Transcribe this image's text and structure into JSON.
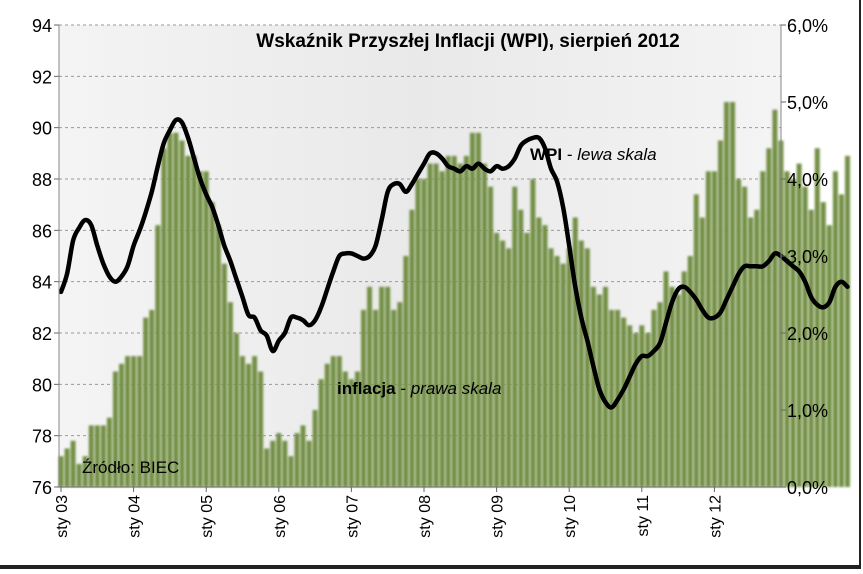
{
  "chart_data": {
    "type": "bar+line",
    "title": "Wskaźnik  Przyszłej Inflacji (WPI), sierpień 2012",
    "source": "Źródło: BIEC",
    "left_axis": {
      "min": 76,
      "max": 94,
      "ticks": [
        "76",
        "78",
        "80",
        "82",
        "84",
        "86",
        "88",
        "90",
        "92",
        "94"
      ]
    },
    "right_axis": {
      "min": 0.0,
      "max": 6.0,
      "ticks": [
        "0,0%",
        "1,0%",
        "2,0%",
        "3,0%",
        "4,0%",
        "5,0%",
        "6,0%"
      ]
    },
    "x_start": "2003-01",
    "x_tick_labels": [
      "sty 03",
      "sty 04",
      "sty 05",
      "sty 06",
      "sty 07",
      "sty 08",
      "sty 09",
      "sty 10",
      "sty 11",
      "sty 12"
    ],
    "gridlines": "horizontal dashed",
    "series": [
      {
        "name": "WPI",
        "label_bold": "WPI",
        "label_rest": " - ",
        "label_italic": "lewa skala",
        "axis": "left",
        "color": "#000000",
        "values": [
          83.6,
          84.3,
          85.6,
          86.1,
          86.4,
          86.2,
          85.4,
          84.7,
          84.2,
          84.0,
          84.2,
          84.6,
          85.4,
          86.0,
          86.7,
          87.5,
          88.5,
          89.4,
          89.9,
          90.3,
          90.2,
          89.6,
          88.8,
          88.0,
          87.4,
          86.9,
          86.2,
          85.4,
          84.8,
          84.1,
          83.4,
          82.7,
          82.6,
          82.1,
          81.9,
          81.3,
          81.7,
          82.0,
          82.6,
          82.6,
          82.5,
          82.3,
          82.5,
          83.0,
          83.7,
          84.4,
          85.0,
          85.1,
          85.1,
          85.0,
          84.9,
          85.0,
          85.4,
          86.4,
          87.5,
          87.8,
          87.8,
          87.5,
          87.8,
          88.2,
          88.6,
          89.0,
          89.0,
          88.8,
          88.5,
          88.4,
          88.3,
          88.5,
          88.4,
          88.6,
          88.4,
          88.3,
          88.5,
          88.4,
          88.5,
          88.8,
          89.3,
          89.5,
          89.6,
          89.6,
          89.2,
          88.4,
          87.9,
          86.9,
          85.4,
          83.8,
          82.6,
          81.7,
          80.7,
          79.8,
          79.3,
          79.1,
          79.4,
          79.8,
          80.3,
          80.8,
          81.1,
          81.1,
          81.3,
          81.6,
          82.4,
          83.2,
          83.7,
          83.8,
          83.6,
          83.3,
          82.9,
          82.6,
          82.6,
          82.8,
          83.3,
          83.8,
          84.3,
          84.6,
          84.6,
          84.6,
          84.6,
          84.8,
          85.1,
          85.0,
          84.8,
          84.6,
          84.4,
          84.0,
          83.4,
          83.1,
          83.0,
          83.2,
          83.8,
          84.0,
          83.8
        ]
      },
      {
        "name": "inflacja",
        "label_bold": "inflacja",
        "label_rest": " - ",
        "label_italic": "prawa skala",
        "axis": "right",
        "color": "#6e8a41",
        "values": [
          0.4,
          0.5,
          0.6,
          0.3,
          0.4,
          0.8,
          0.8,
          0.8,
          0.9,
          1.5,
          1.6,
          1.7,
          1.7,
          1.7,
          2.2,
          2.3,
          3.4,
          4.4,
          4.6,
          4.6,
          4.5,
          4.3,
          4.3,
          4.1,
          4.1,
          3.7,
          3.4,
          2.9,
          2.4,
          2.0,
          1.7,
          1.6,
          1.7,
          1.5,
          0.5,
          0.6,
          0.7,
          0.6,
          0.4,
          0.7,
          0.8,
          0.6,
          1.0,
          1.4,
          1.6,
          1.7,
          1.7,
          1.5,
          1.4,
          1.5,
          2.3,
          2.6,
          2.3,
          2.6,
          2.6,
          2.3,
          2.4,
          3.0,
          3.6,
          4.0,
          4.0,
          4.2,
          4.2,
          4.1,
          4.3,
          4.3,
          4.2,
          4.3,
          4.6,
          4.6,
          4.2,
          3.9,
          3.3,
          3.2,
          3.1,
          3.9,
          3.6,
          3.3,
          4.0,
          3.5,
          3.4,
          3.1,
          3.0,
          2.9,
          3.1,
          3.5,
          3.2,
          3.1,
          2.6,
          2.5,
          2.6,
          2.3,
          2.3,
          2.2,
          2.1,
          2.0,
          2.1,
          2.0,
          2.3,
          2.4,
          2.8,
          2.6,
          2.5,
          2.8,
          3.0,
          3.8,
          3.5,
          4.1,
          4.1,
          4.5,
          5.0,
          5.0,
          4.0,
          3.9,
          3.5,
          3.6,
          4.1,
          4.4,
          4.9,
          4.5,
          4.1,
          4.0,
          4.2,
          3.9,
          3.6,
          4.4,
          3.7,
          3.4,
          4.1,
          3.8,
          4.3
        ]
      }
    ]
  }
}
